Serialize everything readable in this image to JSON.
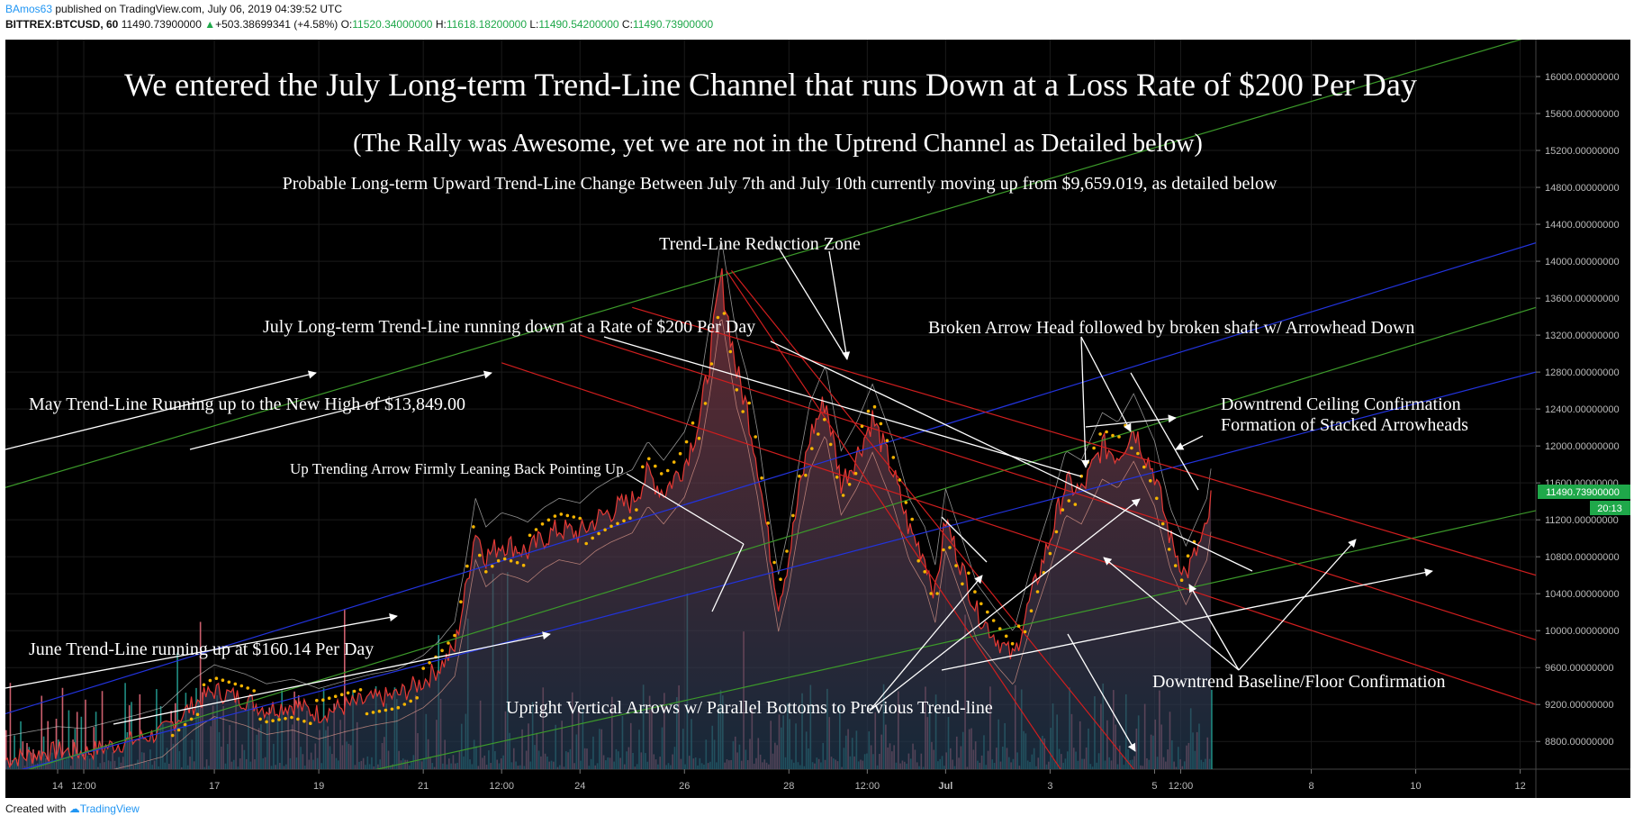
{
  "header": {
    "user": "BAmos63",
    "published": "published on TradingView.com, July 06, 2019 04:39:52 UTC",
    "symbol": "BITTREX:BTCUSD, 60",
    "price": "11490.73900000",
    "change": "+503.38699341 (+4.58%)",
    "o_label": "O:",
    "o": "11520.34000000",
    "h_label": "H:",
    "h": "11618.18200000",
    "l_label": "L:",
    "l": "11490.54200000",
    "c_label": "C:",
    "c": "11490.73900000"
  },
  "footer": {
    "created_with": "Created with",
    "brand": "TradingView"
  },
  "colors": {
    "background": "#000000",
    "price_line": "#e53935",
    "area_top": "#8a3a44",
    "area_bottom": "#1f3850",
    "volume_up": "#26a69a",
    "volume_down": "#ef7080",
    "dots": "#f4b400",
    "trend_blue": "#2233dd",
    "trend_green": "#3c9a2a",
    "trend_red": "#d01e1e",
    "price_tag": "#1fa84a"
  },
  "price_tag": {
    "value": "11490.73900000",
    "countdown": "20:13"
  },
  "annotations": {
    "title": "We entered the July Long-term Trend-Line Channel that runs Down at a Loss Rate of $200 Per Day",
    "subtitle": "(The Rally was Awesome, yet we are not in the Uptrend Channel as Detailed below)",
    "subtitle2": "Probable Long-term Upward Trend-Line Change Between July 7th and July 10th currently moving up from $9,659.019, as detailed below",
    "reduction_zone": "Trend-Line Reduction Zone",
    "july_trend": "July Long-term Trend-Line running down at a Rate of $200 Per Day",
    "broken_arrow": "Broken Arrow Head followed by broken shaft w/ Arrowhead Down",
    "may_trend": "May Trend-Line Running up to the New High of $13,849.00",
    "ceiling_1": "Downtrend Ceiling Confirmation",
    "ceiling_2": "Formation of Stacked Arrowheads",
    "up_trending": "Up Trending Arrow Firmly Leaning Back Pointing Up",
    "june_trend": "June Trend-Line running up at $160.14 Per Day",
    "baseline": "Downtrend Baseline/Floor Confirmation",
    "upright": "Upright Vertical Arrows w/ Parallel Bottoms to Previous Trend-line"
  },
  "chart_data": {
    "type": "line",
    "title": "",
    "xlabel": "",
    "ylabel": "",
    "ylim": [
      8500,
      16400
    ],
    "y_ticks": [
      "16000.00000000",
      "15600.00000000",
      "15200.00000000",
      "14800.00000000",
      "14400.00000000",
      "14000.00000000",
      "13600.00000000",
      "13200.00000000",
      "12800.00000000",
      "12400.00000000",
      "12000.00000000",
      "11600.00000000",
      "11200.00000000",
      "10800.00000000",
      "10400.00000000",
      "10000.00000000",
      "9600.00000000",
      "9200.00000000",
      "8800.00000000"
    ],
    "x_ticks": [
      "14",
      "12:00",
      "17",
      "19",
      "21",
      "12:00",
      "24",
      "26",
      "28",
      "12:00",
      "Jul",
      "3",
      "5",
      "12:00",
      "8",
      "10",
      "12"
    ],
    "x_tick_days": [
      14,
      14.5,
      17,
      19,
      21,
      22.5,
      24,
      26,
      28,
      29.5,
      31,
      33,
      35,
      35.5,
      38,
      40,
      42
    ],
    "x_range_days": [
      13,
      42.3
    ],
    "series": [
      {
        "x_days": [
          13.0,
          13.5,
          14.0,
          14.5,
          15.0,
          15.5,
          16.0,
          16.3,
          16.6,
          17.0,
          17.3,
          17.6,
          18.0,
          18.5,
          19.0,
          19.5,
          20.0,
          20.5,
          21.0,
          21.3,
          21.6,
          21.8,
          22.0,
          22.2,
          22.5,
          22.8,
          23.0,
          23.3,
          23.6,
          24.0,
          24.3,
          24.6,
          25.0,
          25.3,
          25.6,
          26.0,
          26.3,
          26.5,
          26.7,
          26.8,
          27.0,
          27.2,
          27.4,
          27.6,
          27.8,
          28.0,
          28.2,
          28.4,
          28.7,
          29.0,
          29.3,
          29.6,
          30.0,
          30.3,
          30.6,
          30.8,
          31.0,
          31.3,
          31.6,
          32.0,
          32.3,
          32.6,
          33.0,
          33.3,
          33.6,
          34.0,
          34.3,
          34.6,
          35.0,
          35.3,
          35.6,
          36.0,
          36.1
        ],
        "values": [
          8600,
          8650,
          8700,
          8680,
          8750,
          8820,
          8900,
          9050,
          9200,
          9350,
          9300,
          9250,
          9150,
          9200,
          9100,
          9180,
          9250,
          9300,
          9450,
          9600,
          9800,
          10400,
          11100,
          10800,
          10950,
          10900,
          10850,
          11000,
          11100,
          11050,
          11200,
          11300,
          11400,
          11700,
          11500,
          11800,
          12300,
          13000,
          13850,
          13500,
          12800,
          12400,
          11800,
          11000,
          10300,
          10800,
          11500,
          12100,
          12500,
          11600,
          11900,
          12300,
          11700,
          11100,
          10800,
          10400,
          11200,
          10700,
          10200,
          9900,
          9700,
          10300,
          11000,
          11600,
          11500,
          12000,
          11900,
          12200,
          11700,
          11000,
          10600,
          11100,
          11490
        ]
      }
    ]
  }
}
